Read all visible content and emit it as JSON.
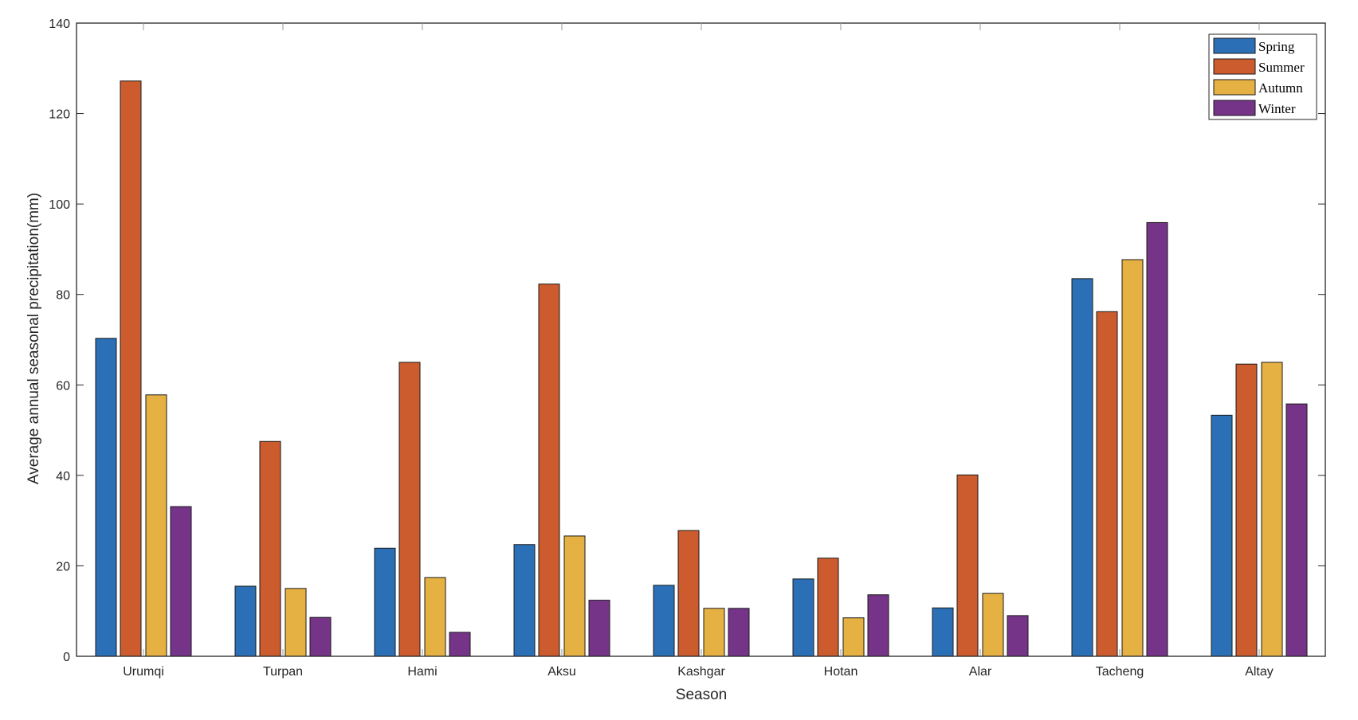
{
  "chart_data": {
    "type": "bar",
    "title": "",
    "xlabel": "Season",
    "ylabel": "Average annual seasonal precipitation(mm)",
    "ylim": [
      0,
      140
    ],
    "yticks": [
      0,
      20,
      40,
      60,
      80,
      100,
      120,
      140
    ],
    "grid": false,
    "legend_position": "top-right",
    "categories": [
      "Urumqi",
      "Turpan",
      "Hami",
      "Aksu",
      "Kashgar",
      "Hotan",
      "Alar",
      "Tacheng",
      "Altay"
    ],
    "series": [
      {
        "name": "Spring",
        "color": "#2b70b7",
        "values": [
          70.3,
          15.5,
          23.9,
          24.7,
          15.7,
          17.1,
          10.7,
          83.5,
          53.3
        ]
      },
      {
        "name": "Summer",
        "color": "#cc5b2d",
        "values": [
          127.2,
          47.5,
          65.0,
          82.3,
          27.8,
          21.7,
          40.1,
          76.2,
          64.6
        ]
      },
      {
        "name": "Autumn",
        "color": "#e5b143",
        "values": [
          57.8,
          15.0,
          17.4,
          26.6,
          10.6,
          8.5,
          13.9,
          87.7,
          65.0
        ]
      },
      {
        "name": "Winter",
        "color": "#763488",
        "values": [
          33.1,
          8.6,
          5.3,
          12.4,
          10.6,
          13.6,
          9.0,
          95.9,
          55.8
        ]
      }
    ]
  }
}
